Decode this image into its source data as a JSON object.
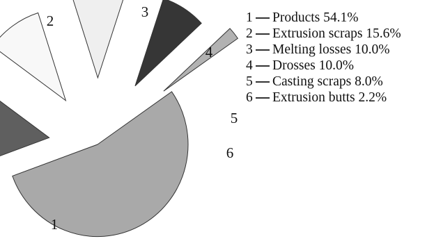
{
  "chart_data": {
    "type": "pie",
    "title": "",
    "exploded": true,
    "slices": [
      {
        "id": "1",
        "label": "Products",
        "value": 54.1,
        "percent": "54.1%",
        "color": "#a9a9a9"
      },
      {
        "id": "2",
        "label": "Extrusion scraps",
        "value": 15.6,
        "percent": "15.6%",
        "color": "#5f5f5f"
      },
      {
        "id": "3",
        "label": "Melting losses",
        "value": 10.0,
        "percent": "10.0%",
        "color": "#f8f8f8"
      },
      {
        "id": "4",
        "label": "Drosses",
        "value": 10.0,
        "percent": "10.0%",
        "color": "#efefef"
      },
      {
        "id": "5",
        "label": "Casting scraps",
        "value": 8.0,
        "percent": "8.0%",
        "color": "#363636"
      },
      {
        "id": "6",
        "label": "Extrusion butts",
        "value": 2.2,
        "percent": "2.2%",
        "color": "#b2b2b2"
      }
    ],
    "legend": {
      "placement": "right",
      "separator": "—",
      "items": [
        {
          "number": "1",
          "text": "Products 54.1%"
        },
        {
          "number": "2",
          "text": "Extrusion scraps 15.6%"
        },
        {
          "number": "3",
          "text": "Melting losses 10.0%"
        },
        {
          "number": "4",
          "text": "Drosses 10.0%"
        },
        {
          "number": "5",
          "text": "Casting scraps 8.0%"
        },
        {
          "number": "6",
          "text": "Extrusion butts 2.2%"
        }
      ]
    }
  }
}
